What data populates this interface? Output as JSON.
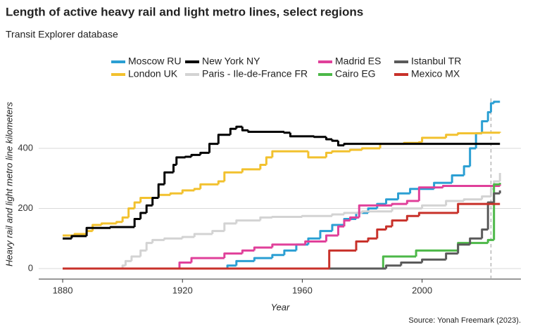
{
  "chart_data": {
    "type": "step-line",
    "title": "Length of active heavy rail and light metro lines, select regions",
    "subtitle": "Transit Explorer database",
    "x_label": "Year",
    "y_label": "Heavy rail and light metro line kilometers",
    "source": "Source: Yonah Freemark (2023).",
    "xlim": [
      1872,
      2033
    ],
    "xticks": [
      1880,
      1920,
      1960,
      2000
    ],
    "ylim": [
      -35,
      566
    ],
    "yticks": [
      0,
      200,
      400
    ],
    "grid": true,
    "vline": 2023,
    "legend": "top",
    "series": [
      {
        "name": "Moscow RU",
        "color": "#2b9fd3",
        "x": [
          1880,
          1935,
          1938,
          1944,
          1950,
          1954,
          1958,
          1962,
          1966,
          1970,
          1974,
          1978,
          1982,
          1985,
          1988,
          1992,
          1996,
          2004,
          2010,
          2014,
          2016,
          2018,
          2020,
          2022,
          2023,
          2024,
          2026
        ],
        "values": [
          0,
          10,
          25,
          35,
          45,
          60,
          80,
          100,
          125,
          145,
          165,
          185,
          200,
          215,
          230,
          250,
          265,
          285,
          310,
          340,
          400,
          450,
          490,
          520,
          550,
          555,
          555
        ]
      },
      {
        "name": "London UK",
        "color": "#f2c12e",
        "x": [
          1880,
          1884,
          1888,
          1890,
          1893,
          1898,
          1900,
          1902,
          1904,
          1906,
          1912,
          1916,
          1920,
          1924,
          1926,
          1932,
          1934,
          1940,
          1946,
          1948,
          1950,
          1962,
          1968,
          1970,
          1976,
          1980,
          1986,
          1994,
          1999,
          2000,
          2008,
          2012,
          2020,
          2026
        ],
        "values": [
          110,
          115,
          125,
          145,
          150,
          155,
          170,
          200,
          220,
          235,
          245,
          250,
          260,
          265,
          280,
          290,
          320,
          330,
          345,
          370,
          390,
          370,
          385,
          390,
          395,
          400,
          415,
          418,
          420,
          435,
          445,
          450,
          452,
          455
        ]
      },
      {
        "name": "New York NY",
        "color": "#000000",
        "x": [
          1880,
          1883,
          1888,
          1896,
          1904,
          1906,
          1908,
          1910,
          1912,
          1914,
          1917,
          1918,
          1921,
          1923,
          1926,
          1929,
          1932,
          1936,
          1938,
          1940,
          1942,
          1954,
          1956,
          1964,
          1968,
          1970,
          1972,
          1974,
          2026
        ],
        "values": [
          100,
          108,
          135,
          138,
          165,
          185,
          210,
          235,
          280,
          320,
          345,
          370,
          372,
          378,
          385,
          415,
          445,
          465,
          472,
          460,
          455,
          452,
          440,
          438,
          430,
          425,
          410,
          415,
          415
        ]
      },
      {
        "name": "Paris - Ile-de-France FR",
        "color": "#d3d3d3",
        "x": [
          1880,
          1900,
          1901,
          1903,
          1906,
          1908,
          1910,
          1914,
          1920,
          1924,
          1930,
          1934,
          1938,
          1946,
          1950,
          1960,
          1970,
          1974,
          1980,
          1990,
          2000,
          2008,
          2014,
          2020,
          2023,
          2024,
          2026
        ],
        "values": [
          0,
          10,
          25,
          40,
          60,
          85,
          95,
          100,
          105,
          115,
          125,
          150,
          160,
          170,
          172,
          175,
          180,
          185,
          190,
          200,
          210,
          225,
          230,
          240,
          265,
          290,
          318
        ]
      },
      {
        "name": "Madrid ES",
        "color": "#e0409a",
        "x": [
          1880,
          1919,
          1923,
          1934,
          1940,
          1944,
          1950,
          1961,
          1968,
          1972,
          1974,
          1976,
          1979,
          1990,
          1995,
          1999,
          2007,
          2026
        ],
        "values": [
          0,
          20,
          35,
          50,
          60,
          70,
          80,
          90,
          110,
          140,
          160,
          170,
          210,
          215,
          225,
          270,
          275,
          280
        ]
      },
      {
        "name": "Cairo EG",
        "color": "#4cb848",
        "x": [
          1880,
          1987,
          1998,
          2012,
          2022,
          2024,
          2026
        ],
        "values": [
          0,
          40,
          60,
          85,
          95,
          280,
          285
        ]
      },
      {
        "name": "Istanbul TR",
        "color": "#5a5a5a",
        "x": [
          1880,
          1988,
          1993,
          2000,
          2008,
          2012,
          2016,
          2020,
          2022,
          2024,
          2026
        ],
        "values": [
          0,
          10,
          20,
          30,
          50,
          80,
          100,
          130,
          220,
          250,
          260
        ]
      },
      {
        "name": "Mexico MX",
        "color": "#c8312a",
        "x": [
          1880,
          1969,
          1978,
          1982,
          1985,
          1988,
          1990,
          1995,
          1999,
          2012,
          2026
        ],
        "values": [
          0,
          60,
          90,
          100,
          130,
          140,
          160,
          175,
          185,
          215,
          215
        ]
      }
    ]
  }
}
